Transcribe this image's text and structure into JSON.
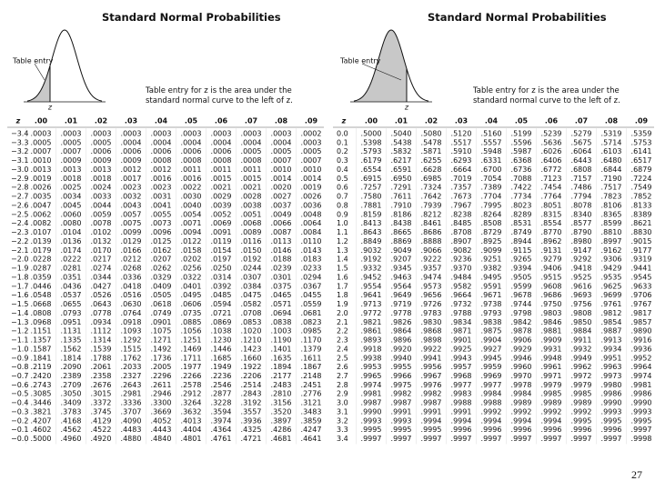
{
  "panels": [
    {
      "title": "Standard Normal Probabilities",
      "figure_label": "Table entry",
      "axis_label": "z",
      "caption": "Table entry for z is the area under the standard normal curve to the left of z.",
      "table": {
        "header": [
          "z",
          ".00",
          ".01",
          ".02",
          ".03",
          ".04",
          ".05",
          ".06",
          ".07",
          ".08",
          ".09"
        ],
        "rows": [
          [
            "−3.4",
            ".0003",
            ".0003",
            ".0003",
            ".0003",
            ".0003",
            ".0003",
            ".0003",
            ".0003",
            ".0003",
            ".0002"
          ],
          [
            "−3.3",
            ".0005",
            ".0005",
            ".0005",
            ".0004",
            ".0004",
            ".0004",
            ".0004",
            ".0004",
            ".0004",
            ".0003"
          ],
          [
            "−3.2",
            ".0007",
            ".0007",
            ".0006",
            ".0006",
            ".0006",
            ".0006",
            ".0006",
            ".0005",
            ".0005",
            ".0005"
          ],
          [
            "−3.1",
            ".0010",
            ".0009",
            ".0009",
            ".0009",
            ".0008",
            ".0008",
            ".0008",
            ".0008",
            ".0007",
            ".0007"
          ],
          [
            "−3.0",
            ".0013",
            ".0013",
            ".0013",
            ".0012",
            ".0012",
            ".0011",
            ".0011",
            ".0011",
            ".0010",
            ".0010"
          ],
          [
            "−2.9",
            ".0019",
            ".0018",
            ".0018",
            ".0017",
            ".0016",
            ".0016",
            ".0015",
            ".0015",
            ".0014",
            ".0014"
          ],
          [
            "−2.8",
            ".0026",
            ".0025",
            ".0024",
            ".0023",
            ".0023",
            ".0022",
            ".0021",
            ".0021",
            ".0020",
            ".0019"
          ],
          [
            "−2.7",
            ".0035",
            ".0034",
            ".0033",
            ".0032",
            ".0031",
            ".0030",
            ".0029",
            ".0028",
            ".0027",
            ".0026"
          ],
          [
            "−2.6",
            ".0047",
            ".0045",
            ".0044",
            ".0043",
            ".0041",
            ".0040",
            ".0039",
            ".0038",
            ".0037",
            ".0036"
          ],
          [
            "−2.5",
            ".0062",
            ".0060",
            ".0059",
            ".0057",
            ".0055",
            ".0054",
            ".0052",
            ".0051",
            ".0049",
            ".0048"
          ],
          [
            "−2.4",
            ".0082",
            ".0080",
            ".0078",
            ".0075",
            ".0073",
            ".0071",
            ".0069",
            ".0068",
            ".0066",
            ".0064"
          ],
          [
            "−2.3",
            ".0107",
            ".0104",
            ".0102",
            ".0099",
            ".0096",
            ".0094",
            ".0091",
            ".0089",
            ".0087",
            ".0084"
          ],
          [
            "−2.2",
            ".0139",
            ".0136",
            ".0132",
            ".0129",
            ".0125",
            ".0122",
            ".0119",
            ".0116",
            ".0113",
            ".0110"
          ],
          [
            "−2.1",
            ".0179",
            ".0174",
            ".0170",
            ".0166",
            ".0162",
            ".0158",
            ".0154",
            ".0150",
            ".0146",
            ".0143"
          ],
          [
            "−2.0",
            ".0228",
            ".0222",
            ".0217",
            ".0212",
            ".0207",
            ".0202",
            ".0197",
            ".0192",
            ".0188",
            ".0183"
          ],
          [
            "−1.9",
            ".0287",
            ".0281",
            ".0274",
            ".0268",
            ".0262",
            ".0256",
            ".0250",
            ".0244",
            ".0239",
            ".0233"
          ],
          [
            "−1.8",
            ".0359",
            ".0351",
            ".0344",
            ".0336",
            ".0329",
            ".0322",
            ".0314",
            ".0307",
            ".0301",
            ".0294"
          ],
          [
            "−1.7",
            ".0446",
            ".0436",
            ".0427",
            ".0418",
            ".0409",
            ".0401",
            ".0392",
            ".0384",
            ".0375",
            ".0367"
          ],
          [
            "−1.6",
            ".0548",
            ".0537",
            ".0526",
            ".0516",
            ".0505",
            ".0495",
            ".0485",
            ".0475",
            ".0465",
            ".0455"
          ],
          [
            "−1.5",
            ".0668",
            ".0655",
            ".0643",
            ".0630",
            ".0618",
            ".0606",
            ".0594",
            ".0582",
            ".0571",
            ".0559"
          ],
          [
            "−1.4",
            ".0808",
            ".0793",
            ".0778",
            ".0764",
            ".0749",
            ".0735",
            ".0721",
            ".0708",
            ".0694",
            ".0681"
          ],
          [
            "−1.3",
            ".0968",
            ".0951",
            ".0934",
            ".0918",
            ".0901",
            ".0885",
            ".0869",
            ".0853",
            ".0838",
            ".0823"
          ],
          [
            "−1.2",
            ".1151",
            ".1131",
            ".1112",
            ".1093",
            ".1075",
            ".1056",
            ".1038",
            ".1020",
            ".1003",
            ".0985"
          ],
          [
            "−1.1",
            ".1357",
            ".1335",
            ".1314",
            ".1292",
            ".1271",
            ".1251",
            ".1230",
            ".1210",
            ".1190",
            ".1170"
          ],
          [
            "−1.0",
            ".1587",
            ".1562",
            ".1539",
            ".1515",
            ".1492",
            ".1469",
            ".1446",
            ".1423",
            ".1401",
            ".1379"
          ],
          [
            "−0.9",
            ".1841",
            ".1814",
            ".1788",
            ".1762",
            ".1736",
            ".1711",
            ".1685",
            ".1660",
            ".1635",
            ".1611"
          ],
          [
            "−0.8",
            ".2119",
            ".2090",
            ".2061",
            ".2033",
            ".2005",
            ".1977",
            ".1949",
            ".1922",
            ".1894",
            ".1867"
          ],
          [
            "−0.7",
            ".2420",
            ".2389",
            ".2358",
            ".2327",
            ".2296",
            ".2266",
            ".2236",
            ".2206",
            ".2177",
            ".2148"
          ],
          [
            "−0.6",
            ".2743",
            ".2709",
            ".2676",
            ".2643",
            ".2611",
            ".2578",
            ".2546",
            ".2514",
            ".2483",
            ".2451"
          ],
          [
            "−0.5",
            ".3085",
            ".3050",
            ".3015",
            ".2981",
            ".2946",
            ".2912",
            ".2877",
            ".2843",
            ".2810",
            ".2776"
          ],
          [
            "−0.4",
            ".3446",
            ".3409",
            ".3372",
            ".3336",
            ".3300",
            ".3264",
            ".3228",
            ".3192",
            ".3156",
            ".3121"
          ],
          [
            "−0.3",
            ".3821",
            ".3783",
            ".3745",
            ".3707",
            ".3669",
            ".3632",
            ".3594",
            ".3557",
            ".3520",
            ".3483"
          ],
          [
            "−0.2",
            ".4207",
            ".4168",
            ".4129",
            ".4090",
            ".4052",
            ".4013",
            ".3974",
            ".3936",
            ".3897",
            ".3859"
          ],
          [
            "−0.1",
            ".4602",
            ".4562",
            ".4522",
            ".4483",
            ".4443",
            ".4404",
            ".4364",
            ".4325",
            ".4286",
            ".4247"
          ],
          [
            "−0.0",
            ".5000",
            ".4960",
            ".4920",
            ".4880",
            ".4840",
            ".4801",
            ".4761",
            ".4721",
            ".4681",
            ".4641"
          ]
        ]
      }
    },
    {
      "title": "Standard Normal Probabilities",
      "figure_label": "Table entry",
      "axis_label": "z",
      "caption": "Table entry for z is the area under the standard normal curve to the left of z.",
      "table": {
        "header": [
          "z",
          ".00",
          ".01",
          ".02",
          ".03",
          ".04",
          ".05",
          ".06",
          ".07",
          ".08",
          ".09"
        ],
        "rows": [
          [
            "0.0",
            ".5000",
            ".5040",
            ".5080",
            ".5120",
            ".5160",
            ".5199",
            ".5239",
            ".5279",
            ".5319",
            ".5359"
          ],
          [
            "0.1",
            ".5398",
            ".5438",
            ".5478",
            ".5517",
            ".5557",
            ".5596",
            ".5636",
            ".5675",
            ".5714",
            ".5753"
          ],
          [
            "0.2",
            ".5793",
            ".5832",
            ".5871",
            ".5910",
            ".5948",
            ".5987",
            ".6026",
            ".6064",
            ".6103",
            ".6141"
          ],
          [
            "0.3",
            ".6179",
            ".6217",
            ".6255",
            ".6293",
            ".6331",
            ".6368",
            ".6406",
            ".6443",
            ".6480",
            ".6517"
          ],
          [
            "0.4",
            ".6554",
            ".6591",
            ".6628",
            ".6664",
            ".6700",
            ".6736",
            ".6772",
            ".6808",
            ".6844",
            ".6879"
          ],
          [
            "0.5",
            ".6915",
            ".6950",
            ".6985",
            ".7019",
            ".7054",
            ".7088",
            ".7123",
            ".7157",
            ".7190",
            ".7224"
          ],
          [
            "0.6",
            ".7257",
            ".7291",
            ".7324",
            ".7357",
            ".7389",
            ".7422",
            ".7454",
            ".7486",
            ".7517",
            ".7549"
          ],
          [
            "0.7",
            ".7580",
            ".7611",
            ".7642",
            ".7673",
            ".7704",
            ".7734",
            ".7764",
            ".7794",
            ".7823",
            ".7852"
          ],
          [
            "0.8",
            ".7881",
            ".7910",
            ".7939",
            ".7967",
            ".7995",
            ".8023",
            ".8051",
            ".8078",
            ".8106",
            ".8133"
          ],
          [
            "0.9",
            ".8159",
            ".8186",
            ".8212",
            ".8238",
            ".8264",
            ".8289",
            ".8315",
            ".8340",
            ".8365",
            ".8389"
          ],
          [
            "1.0",
            ".8413",
            ".8438",
            ".8461",
            ".8485",
            ".8508",
            ".8531",
            ".8554",
            ".8577",
            ".8599",
            ".8621"
          ],
          [
            "1.1",
            ".8643",
            ".8665",
            ".8686",
            ".8708",
            ".8729",
            ".8749",
            ".8770",
            ".8790",
            ".8810",
            ".8830"
          ],
          [
            "1.2",
            ".8849",
            ".8869",
            ".8888",
            ".8907",
            ".8925",
            ".8944",
            ".8962",
            ".8980",
            ".8997",
            ".9015"
          ],
          [
            "1.3",
            ".9032",
            ".9049",
            ".9066",
            ".9082",
            ".9099",
            ".9115",
            ".9131",
            ".9147",
            ".9162",
            ".9177"
          ],
          [
            "1.4",
            ".9192",
            ".9207",
            ".9222",
            ".9236",
            ".9251",
            ".9265",
            ".9279",
            ".9292",
            ".9306",
            ".9319"
          ],
          [
            "1.5",
            ".9332",
            ".9345",
            ".9357",
            ".9370",
            ".9382",
            ".9394",
            ".9406",
            ".9418",
            ".9429",
            ".9441"
          ],
          [
            "1.6",
            ".9452",
            ".9463",
            ".9474",
            ".9484",
            ".9495",
            ".9505",
            ".9515",
            ".9525",
            ".9535",
            ".9545"
          ],
          [
            "1.7",
            ".9554",
            ".9564",
            ".9573",
            ".9582",
            ".9591",
            ".9599",
            ".9608",
            ".9616",
            ".9625",
            ".9633"
          ],
          [
            "1.8",
            ".9641",
            ".9649",
            ".9656",
            ".9664",
            ".9671",
            ".9678",
            ".9686",
            ".9693",
            ".9699",
            ".9706"
          ],
          [
            "1.9",
            ".9713",
            ".9719",
            ".9726",
            ".9732",
            ".9738",
            ".9744",
            ".9750",
            ".9756",
            ".9761",
            ".9767"
          ],
          [
            "2.0",
            ".9772",
            ".9778",
            ".9783",
            ".9788",
            ".9793",
            ".9798",
            ".9803",
            ".9808",
            ".9812",
            ".9817"
          ],
          [
            "2.1",
            ".9821",
            ".9826",
            ".9830",
            ".9834",
            ".9838",
            ".9842",
            ".9846",
            ".9850",
            ".9854",
            ".9857"
          ],
          [
            "2.2",
            ".9861",
            ".9864",
            ".9868",
            ".9871",
            ".9875",
            ".9878",
            ".9881",
            ".9884",
            ".9887",
            ".9890"
          ],
          [
            "2.3",
            ".9893",
            ".9896",
            ".9898",
            ".9901",
            ".9904",
            ".9906",
            ".9909",
            ".9911",
            ".9913",
            ".9916"
          ],
          [
            "2.4",
            ".9918",
            ".9920",
            ".9922",
            ".9925",
            ".9927",
            ".9929",
            ".9931",
            ".9932",
            ".9934",
            ".9936"
          ],
          [
            "2.5",
            ".9938",
            ".9940",
            ".9941",
            ".9943",
            ".9945",
            ".9946",
            ".9948",
            ".9949",
            ".9951",
            ".9952"
          ],
          [
            "2.6",
            ".9953",
            ".9955",
            ".9956",
            ".9957",
            ".9959",
            ".9960",
            ".9961",
            ".9962",
            ".9963",
            ".9964"
          ],
          [
            "2.7",
            ".9965",
            ".9966",
            ".9967",
            ".9968",
            ".9969",
            ".9970",
            ".9971",
            ".9972",
            ".9973",
            ".9974"
          ],
          [
            "2.8",
            ".9974",
            ".9975",
            ".9976",
            ".9977",
            ".9977",
            ".9978",
            ".9979",
            ".9979",
            ".9980",
            ".9981"
          ],
          [
            "2.9",
            ".9981",
            ".9982",
            ".9982",
            ".9983",
            ".9984",
            ".9984",
            ".9985",
            ".9985",
            ".9986",
            ".9986"
          ],
          [
            "3.0",
            ".9987",
            ".9987",
            ".9987",
            ".9988",
            ".9988",
            ".9989",
            ".9989",
            ".9989",
            ".9990",
            ".9990"
          ],
          [
            "3.1",
            ".9990",
            ".9991",
            ".9991",
            ".9991",
            ".9992",
            ".9992",
            ".9992",
            ".9992",
            ".9993",
            ".9993"
          ],
          [
            "3.2",
            ".9993",
            ".9993",
            ".9994",
            ".9994",
            ".9994",
            ".9994",
            ".9994",
            ".9995",
            ".9995",
            ".9995"
          ],
          [
            "3.3",
            ".9995",
            ".9995",
            ".9995",
            ".9996",
            ".9996",
            ".9996",
            ".9996",
            ".9996",
            ".9996",
            ".9997"
          ],
          [
            "3.4",
            ".9997",
            ".9997",
            ".9997",
            ".9997",
            ".9997",
            ".9997",
            ".9997",
            ".9997",
            ".9997",
            ".9998"
          ]
        ]
      }
    }
  ],
  "page_number": "27"
}
